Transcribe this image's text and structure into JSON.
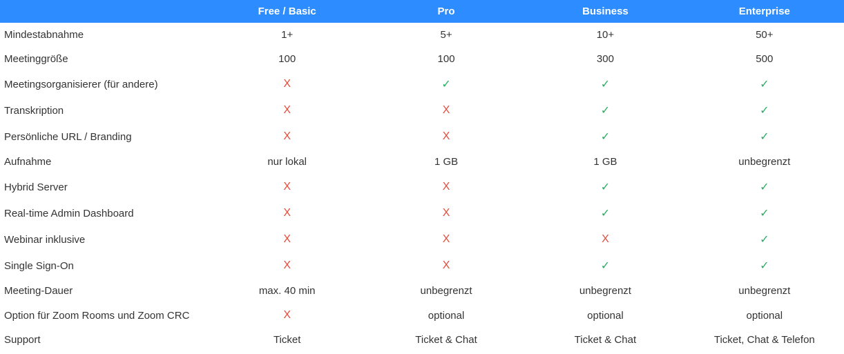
{
  "table": {
    "type": "table",
    "header_bg": "#2d8cff",
    "header_text_color": "#ffffff",
    "background_color": "#ffffff",
    "text_color": "#333333",
    "cross_color": "#e74c3c",
    "check_color": "#27ae60",
    "cross_glyph": "X",
    "check_glyph": "✓",
    "font_family": "Arial",
    "header_font_size": 15,
    "body_font_size": 15,
    "label_col_width": 300,
    "value_col_width": 230,
    "columns": [
      "",
      "Free / Basic",
      "Pro",
      "Business",
      "Enterprise"
    ],
    "rows": [
      {
        "label": "Mindestabnahme",
        "values": [
          {
            "t": "text",
            "v": "1+"
          },
          {
            "t": "text",
            "v": "5+"
          },
          {
            "t": "text",
            "v": "10+"
          },
          {
            "t": "text",
            "v": "50+"
          }
        ]
      },
      {
        "label": "Meetinggröße",
        "values": [
          {
            "t": "text",
            "v": "100"
          },
          {
            "t": "text",
            "v": "100"
          },
          {
            "t": "text",
            "v": "300"
          },
          {
            "t": "text",
            "v": "500"
          }
        ]
      },
      {
        "label": "Meetingsorganisierer (für andere)",
        "values": [
          {
            "t": "cross"
          },
          {
            "t": "check"
          },
          {
            "t": "check"
          },
          {
            "t": "check"
          }
        ]
      },
      {
        "label": "Transkription",
        "values": [
          {
            "t": "cross"
          },
          {
            "t": "cross"
          },
          {
            "t": "check"
          },
          {
            "t": "check"
          }
        ]
      },
      {
        "label": "Persönliche URL / Branding",
        "values": [
          {
            "t": "cross"
          },
          {
            "t": "cross"
          },
          {
            "t": "check"
          },
          {
            "t": "check"
          }
        ]
      },
      {
        "label": "Aufnahme",
        "values": [
          {
            "t": "text",
            "v": "nur lokal"
          },
          {
            "t": "text",
            "v": "1 GB"
          },
          {
            "t": "text",
            "v": "1 GB"
          },
          {
            "t": "text",
            "v": "unbegrenzt"
          }
        ]
      },
      {
        "label": "Hybrid Server",
        "values": [
          {
            "t": "cross"
          },
          {
            "t": "cross"
          },
          {
            "t": "check"
          },
          {
            "t": "check"
          }
        ]
      },
      {
        "label": "Real-time Admin Dashboard",
        "values": [
          {
            "t": "cross"
          },
          {
            "t": "cross"
          },
          {
            "t": "check"
          },
          {
            "t": "check"
          }
        ]
      },
      {
        "label": "Webinar inklusive",
        "values": [
          {
            "t": "cross"
          },
          {
            "t": "cross"
          },
          {
            "t": "cross"
          },
          {
            "t": "check"
          }
        ]
      },
      {
        "label": "Single Sign-On",
        "values": [
          {
            "t": "cross"
          },
          {
            "t": "cross"
          },
          {
            "t": "check"
          },
          {
            "t": "check"
          }
        ]
      },
      {
        "label": "Meeting-Dauer",
        "values": [
          {
            "t": "text",
            "v": "max. 40 min"
          },
          {
            "t": "text",
            "v": "unbegrenzt"
          },
          {
            "t": "text",
            "v": "unbegrenzt"
          },
          {
            "t": "text",
            "v": "unbegrenzt"
          }
        ]
      },
      {
        "label": "Option für Zoom Rooms und Zoom CRC",
        "values": [
          {
            "t": "cross"
          },
          {
            "t": "text",
            "v": "optional"
          },
          {
            "t": "text",
            "v": "optional"
          },
          {
            "t": "text",
            "v": "optional"
          }
        ]
      },
      {
        "label": "Support",
        "values": [
          {
            "t": "text",
            "v": "Ticket"
          },
          {
            "t": "text",
            "v": "Ticket & Chat"
          },
          {
            "t": "text",
            "v": "Ticket & Chat"
          },
          {
            "t": "text",
            "v": "Ticket, Chat & Telefon"
          }
        ]
      }
    ]
  }
}
